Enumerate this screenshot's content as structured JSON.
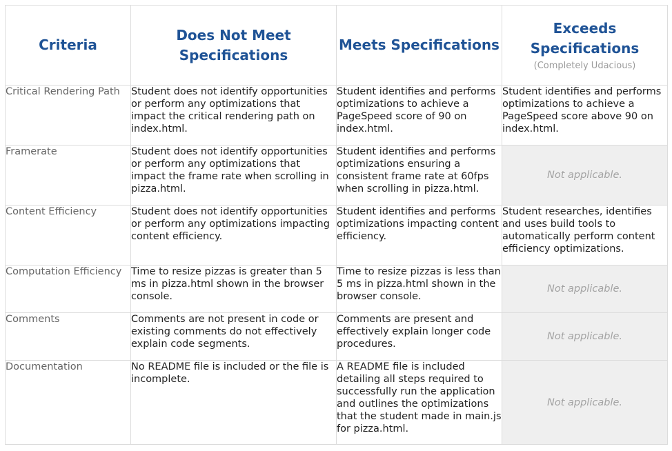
{
  "headers": {
    "criteria": "Criteria",
    "does_not_meet": "Does Not Meet Specifications",
    "meets": "Meets Specifications",
    "exceeds": "Exceeds Specifications",
    "exceeds_sub": "(Completely Udacious)"
  },
  "rows": [
    {
      "criteria": "Critical Rendering Path",
      "does_not_meet": "Student does not identify opportunities or perform any optimizations that impact the critical rendering path on index.html.",
      "meets": "Student identifies and performs optimizations to achieve a PageSpeed score of 90 on index.html.",
      "exceeds": "Student identifies and performs optimizations to achieve a PageSpeed score above 90 on index.html."
    },
    {
      "criteria": "Framerate",
      "does_not_meet": "Student does not identify opportunities or perform any optimizations that impact the frame rate when scrolling in pizza.html.",
      "meets": "Student identifies and performs optimizations ensuring a consistent frame rate at 60fps when scrolling in pizza.html.",
      "exceeds": "Not applicable."
    },
    {
      "criteria": "Content Efficiency",
      "does_not_meet": "Student does not identify opportunities or perform any optimizations impacting content efficiency.",
      "meets": "Student identifies and performs optimizations impacting content efficiency.",
      "exceeds": "Student researches, identifies and uses build tools to automatically perform content efficiency optimizations."
    },
    {
      "criteria": "Computation Efficiency",
      "does_not_meet": "Time to resize pizzas is greater than 5 ms in pizza.html shown in the browser console.",
      "meets": "Time to resize pizzas is less than 5 ms in pizza.html shown in the browser console.",
      "exceeds": "Not applicable."
    },
    {
      "criteria": "Comments",
      "does_not_meet": "Comments are not present in code or existing comments do not effectively explain code segments.",
      "meets": "Comments are present and effectively explain longer code procedures.",
      "exceeds": "Not applicable."
    },
    {
      "criteria": "Documentation",
      "does_not_meet": "No README file is included or the file is incomplete.",
      "meets": "A README file is included detailing all steps required to successfully run the application and outlines the optimizations that the student made in main.js for pizza.html.",
      "exceeds": "Not applicable."
    }
  ],
  "colors": {
    "header_text": "#1f5396",
    "criteria_text": "#666666",
    "not_applicable_bg": "#efefef",
    "not_applicable_text": "#a3a3a3",
    "border": "#dcdcdc"
  }
}
